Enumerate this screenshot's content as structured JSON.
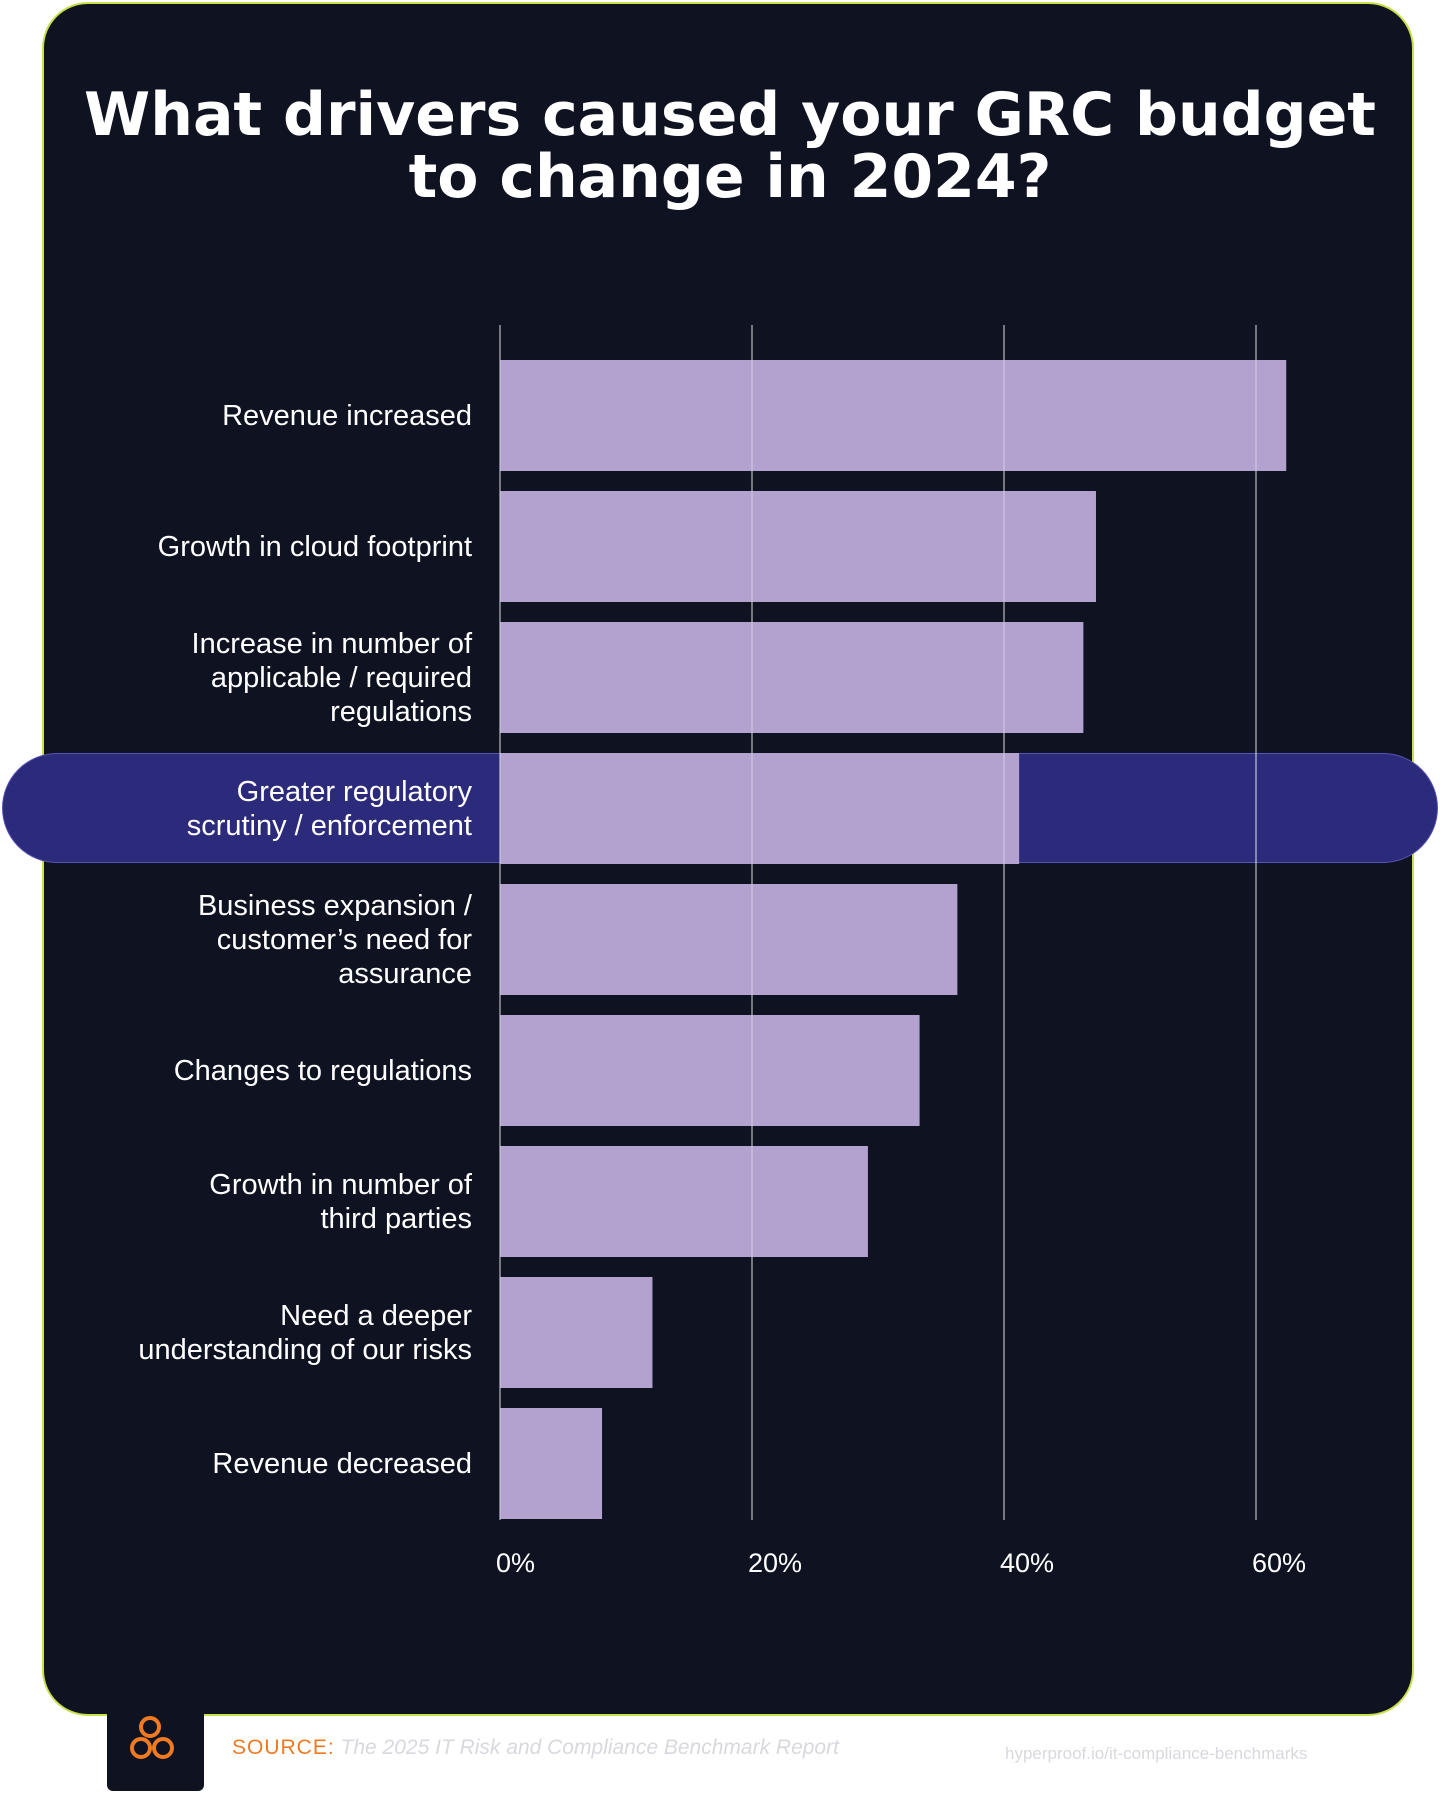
{
  "chart_data": {
    "type": "bar",
    "orientation": "horizontal",
    "title": "What drivers caused your GRC budget to change in 2024?",
    "categories": [
      "Revenue increased",
      "Growth in cloud footprint",
      "Increase in number of\napplicable / required\nregulations",
      "Greater regulatory\nscrutiny / enforcement",
      "Business expansion /\ncustomer’s need for\nassurance",
      "Changes to regulations",
      "Growth in number of\nthird parties",
      "Need a deeper\nunderstanding of our risks",
      "Revenue decreased"
    ],
    "values": [
      62.4,
      47.3,
      46.3,
      41.2,
      36.3,
      33.3,
      29.2,
      12.1,
      8.1
    ],
    "highlighted_category_index": 3,
    "xlim": [
      0,
      60
    ],
    "xticks": [
      0,
      20,
      40,
      60
    ],
    "xtick_labels": [
      "0%",
      "20%",
      "40%",
      "60%"
    ],
    "grid": true,
    "xlabel": "",
    "ylabel": ""
  },
  "colors": {
    "background": "#0e1221",
    "bar": "#b3a2cf",
    "highlight": "#2c2a7a",
    "border": "#c8e04a",
    "source_key": "#f07a22"
  },
  "footer": {
    "logo_icon": "three-circles-logo-icon",
    "source_key": "SOURCE:",
    "source_value": "The 2025 IT Risk and Compliance Benchmark Report",
    "url": "hyperproof.io/it-compliance-benchmarks"
  }
}
